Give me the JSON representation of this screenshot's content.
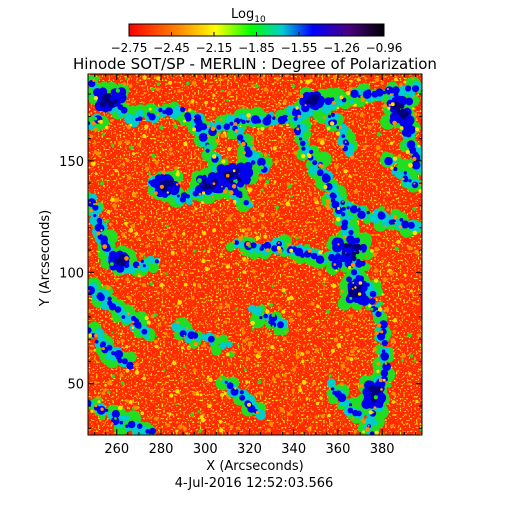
{
  "header": {
    "colorbar_label_base": "Log",
    "colorbar_label_sub": "10",
    "title": "Hinode SOT/SP - MERLIN : Degree of Polarization"
  },
  "colorbar": {
    "tick_labels": [
      "−2.75",
      "−2.45",
      "−2.15",
      "−1.85",
      "−1.55",
      "−1.26",
      "−0.96"
    ],
    "range": [
      -2.75,
      -0.96
    ],
    "colors": [
      "#ff0000",
      "#ff8c00",
      "#ffff00",
      "#00ff00",
      "#00cccc",
      "#0000ff",
      "#4b0082",
      "#000000"
    ]
  },
  "plot": {
    "xlabel": "X (Arcseconds)",
    "ylabel": "Y (Arcseconds)",
    "x_ticks": [
      "260",
      "280",
      "300",
      "320",
      "340",
      "360",
      "380"
    ],
    "y_ticks": [
      "50",
      "100",
      "150"
    ],
    "xlim": [
      247,
      398
    ],
    "ylim": [
      27,
      189
    ],
    "map_colors": {
      "background": "#ff2a00",
      "orange": "#ff8c00",
      "yellow": "#ffe000",
      "green": "#22dd22",
      "cyan": "#00cccc",
      "blue": "#0000ee",
      "navy": "#00007a"
    }
  },
  "footer": {
    "timestamp": "4-Jul-2016 12:52:03.566"
  }
}
